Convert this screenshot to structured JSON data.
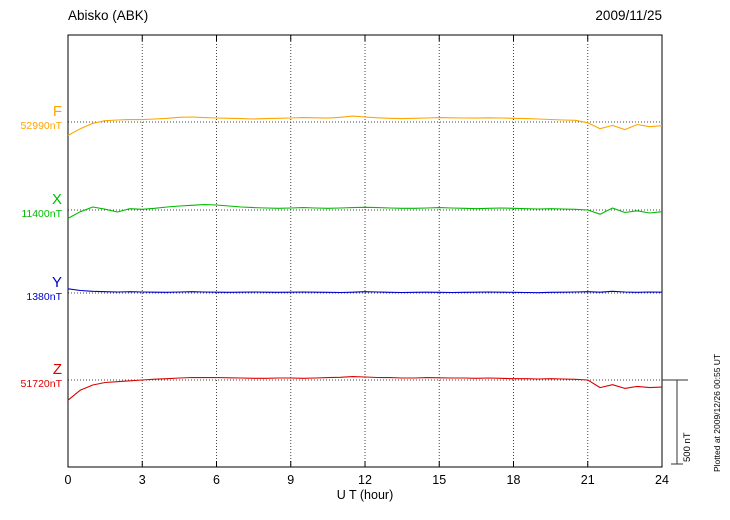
{
  "header": {
    "title": "Abisko (ABK)",
    "date": "2009/11/25"
  },
  "axis": {
    "xlabel": "U T (hour)"
  },
  "scalebar": {
    "label": "500 nT"
  },
  "footer": {
    "plotted_at": "Plotted at 2009/12/26 00:55 UT"
  },
  "chart_data": {
    "type": "line",
    "title": "Abisko (ABK) magnetogram, 2009/11/25",
    "xlabel": "U T (hour)",
    "x_range": [
      0,
      24
    ],
    "x_ticks": [
      0,
      3,
      6,
      9,
      12,
      15,
      18,
      21,
      24
    ],
    "x_step_hours": 0.5,
    "grid": "dotted vertical at each 3-hour tick, dotted horizontal baseline per trace",
    "scale_bar_nT": 500,
    "series": [
      {
        "name": "F",
        "baseline_label": "52990nT",
        "baseline_nT": 52990,
        "color": "#FFA500",
        "deviation_nT": [
          -80,
          -40,
          -8,
          8,
          12,
          15,
          14,
          18,
          22,
          28,
          30,
          26,
          24,
          22,
          20,
          18,
          20,
          22,
          24,
          26,
          25,
          23,
          28,
          35,
          30,
          25,
          22,
          20,
          22,
          24,
          26,
          25,
          24,
          23,
          25,
          24,
          22,
          20,
          18,
          15,
          12,
          10,
          -5,
          -40,
          -20,
          -45,
          -15,
          -28,
          -22
        ]
      },
      {
        "name": "X",
        "baseline_label": "11400nT",
        "baseline_nT": 11400,
        "color": "#00BB00",
        "deviation_nT": [
          -50,
          -10,
          18,
          5,
          -12,
          8,
          4,
          10,
          18,
          24,
          28,
          32,
          30,
          24,
          18,
          14,
          12,
          10,
          12,
          14,
          12,
          10,
          12,
          14,
          16,
          14,
          12,
          10,
          10,
          12,
          14,
          12,
          10,
          8,
          10,
          12,
          10,
          8,
          6,
          8,
          6,
          4,
          0,
          -25,
          12,
          -15,
          -5,
          -18,
          -10
        ]
      },
      {
        "name": "Y",
        "baseline_label": "1380nT",
        "baseline_nT": 1380,
        "color": "#0000CC",
        "deviation_nT": [
          25,
          15,
          10,
          8,
          6,
          8,
          6,
          5,
          4,
          6,
          8,
          6,
          5,
          4,
          5,
          6,
          5,
          4,
          5,
          6,
          5,
          4,
          3,
          5,
          8,
          6,
          4,
          3,
          4,
          5,
          4,
          3,
          4,
          5,
          6,
          5,
          4,
          3,
          2,
          4,
          5,
          6,
          8,
          5,
          10,
          6,
          4,
          6,
          5
        ]
      },
      {
        "name": "Z",
        "baseline_label": "51720nT",
        "baseline_nT": 51720,
        "color": "#DD0000",
        "deviation_nT": [
          -120,
          -60,
          -30,
          -15,
          -10,
          -5,
          0,
          5,
          8,
          12,
          15,
          14,
          15,
          13,
          12,
          10,
          10,
          12,
          12,
          10,
          12,
          14,
          16,
          20,
          18,
          15,
          14,
          12,
          12,
          14,
          13,
          12,
          12,
          10,
          12,
          10,
          8,
          8,
          6,
          8,
          6,
          4,
          0,
          -45,
          -28,
          -50,
          -38,
          -45,
          -42
        ]
      }
    ]
  }
}
